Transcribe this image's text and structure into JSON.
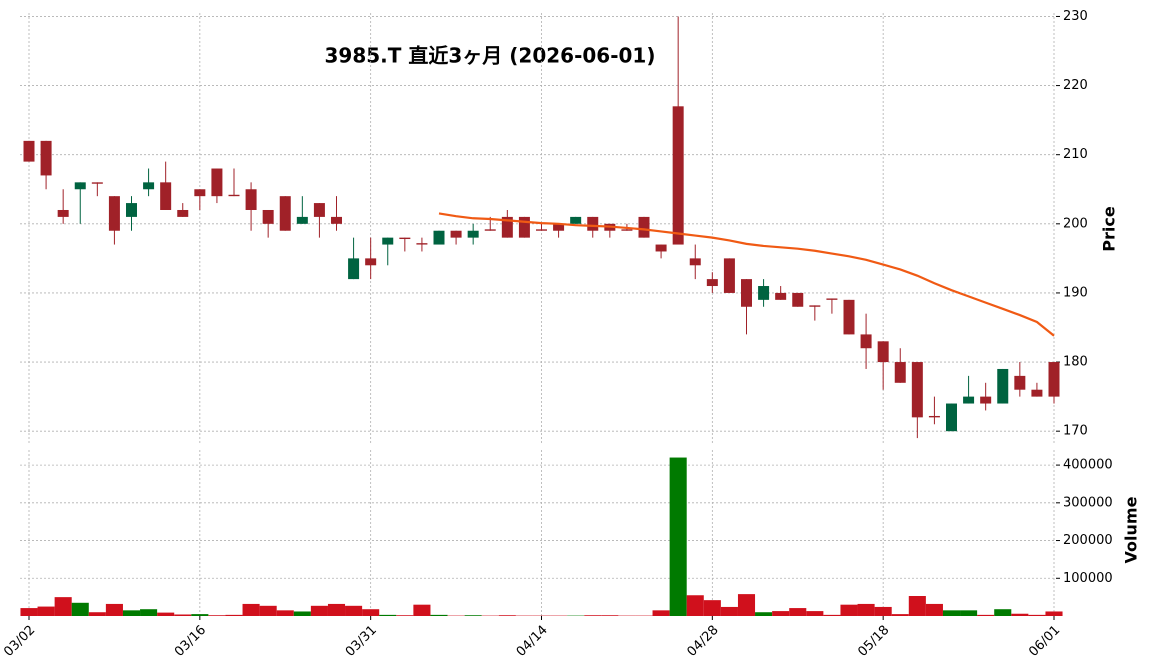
{
  "chart_data": {
    "type": "candlestick",
    "title": "3985.T  直近3ヶ月  (2026-06-01)",
    "categories": [
      "03/02",
      null,
      null,
      null,
      null,
      null,
      null,
      null,
      null,
      null,
      "03/16",
      null,
      null,
      null,
      null,
      null,
      null,
      null,
      null,
      null,
      "03/31",
      null,
      null,
      null,
      null,
      null,
      null,
      null,
      null,
      null,
      "04/14",
      null,
      null,
      null,
      null,
      null,
      null,
      null,
      null,
      null,
      "04/28",
      null,
      null,
      null,
      null,
      null,
      null,
      null,
      null,
      null,
      "05/18",
      null,
      null,
      null,
      null,
      null,
      null,
      null,
      null,
      null,
      "06/01"
    ],
    "open": [
      212,
      212,
      202,
      205,
      206,
      204,
      201,
      205,
      206,
      202,
      205,
      208,
      204.2,
      205,
      202,
      204,
      200,
      203,
      201,
      192,
      195,
      197,
      198,
      197.2,
      197,
      199,
      198,
      199.2,
      201,
      201,
      199.2,
      200,
      200,
      201,
      200,
      199.2,
      201,
      197,
      217,
      195,
      192,
      195,
      192,
      189,
      190,
      190,
      188.2,
      189.2,
      189,
      184,
      183,
      180,
      180,
      172.2,
      170,
      174,
      175,
      174,
      178,
      176,
      180
    ],
    "high": [
      212,
      212,
      205,
      206,
      206,
      204,
      204,
      208,
      209,
      203,
      205,
      208,
      208,
      206,
      202,
      204,
      204,
      203,
      204,
      198,
      198,
      198,
      198,
      198,
      199,
      199,
      200,
      201,
      202,
      201,
      200,
      200,
      201,
      201,
      200,
      200,
      201,
      197,
      230,
      197,
      193,
      195,
      192,
      192,
      191,
      190,
      188.2,
      189.2,
      189,
      187,
      183,
      182,
      180,
      175,
      174,
      178,
      177,
      179,
      180,
      177,
      180
    ],
    "low": [
      209,
      205,
      200,
      200,
      204,
      197,
      199,
      204,
      202,
      201,
      202,
      203,
      204,
      199,
      198,
      199,
      200,
      198,
      199,
      192,
      192,
      194,
      196,
      196,
      197,
      197,
      197,
      199,
      198,
      198,
      199,
      198,
      200,
      198,
      198,
      199,
      198,
      195,
      197,
      192,
      190,
      190,
      184,
      188,
      189,
      188,
      186,
      187,
      184,
      179,
      176,
      177,
      169,
      171,
      170,
      174,
      173,
      174,
      175,
      175,
      174
    ],
    "close": [
      209,
      207,
      201,
      206,
      205.8,
      199,
      203,
      206,
      202,
      201,
      204,
      204,
      204,
      202,
      200,
      199,
      201,
      201,
      200,
      195,
      194,
      198,
      197.8,
      197,
      199,
      198,
      199,
      199,
      198,
      198,
      199,
      199,
      201,
      199,
      199,
      199,
      198,
      196,
      197,
      194,
      191,
      190,
      188,
      191,
      189,
      188,
      188,
      189,
      184,
      182,
      180,
      177,
      172,
      172,
      174,
      175,
      174,
      179,
      176,
      175,
      175
    ],
    "up_color": "#006340",
    "down_color": "#a02128",
    "ma_values": [
      null,
      null,
      null,
      null,
      null,
      null,
      null,
      null,
      null,
      null,
      null,
      null,
      null,
      null,
      null,
      null,
      null,
      null,
      null,
      null,
      null,
      null,
      null,
      null,
      201.5,
      201.1,
      200.8,
      200.7,
      200.5,
      200.3,
      200.1,
      200.0,
      199.8,
      199.7,
      199.6,
      199.4,
      199.2,
      198.9,
      198.6,
      198.3,
      198.0,
      197.6,
      197.1,
      196.8,
      196.6,
      196.4,
      196.1,
      195.7,
      195.3,
      194.8,
      194.1,
      193.4,
      192.5,
      191.4,
      190.4,
      189.5,
      188.6,
      187.7,
      186.8,
      185.8,
      183.8
    ],
    "ma_color": "#f05a14",
    "ylabel": "Price",
    "ylim": [
      168,
      230.5
    ],
    "yticks": [
      170,
      180,
      190,
      200,
      210,
      220,
      230
    ],
    "volume": [
      21000,
      25000,
      50000,
      35000,
      10000,
      32000,
      15000,
      18000,
      9000,
      4000,
      5000,
      2000,
      3000,
      32000,
      27000,
      15000,
      12000,
      27000,
      32000,
      27000,
      18000,
      3000,
      2000,
      30000,
      3000,
      1000,
      2000,
      1000,
      2000,
      1000,
      1000,
      1000,
      1000,
      2000,
      2000,
      1000,
      1000,
      15000,
      420000,
      55000,
      42000,
      24000,
      58000,
      10000,
      13000,
      21000,
      13000,
      3000,
      30000,
      32000,
      24000,
      5000,
      53000,
      32000,
      15000,
      15000,
      3000,
      18000,
      6000,
      3000,
      12000
    ],
    "volume_colors": [
      "#d0101c",
      "#d0101c",
      "#d0101c",
      "#007a00",
      "#d0101c",
      "#d0101c",
      "#007a00",
      "#007a00",
      "#d0101c",
      "#d0101c",
      "#007a00",
      "#d0101c",
      "#d0101c",
      "#d0101c",
      "#d0101c",
      "#d0101c",
      "#007a00",
      "#d0101c",
      "#d0101c",
      "#d0101c",
      "#d0101c",
      "#007a00",
      "#d0101c",
      "#d0101c",
      "#007a00",
      "#d0101c",
      "#007a00",
      "#d0101c",
      "#d0101c",
      "#d0101c",
      "#d0101c",
      "#d0101c",
      "#007a00",
      "#d0101c",
      "#d0101c",
      "#d0101c",
      "#d0101c",
      "#d0101c",
      "#007a00",
      "#d0101c",
      "#d0101c",
      "#d0101c",
      "#d0101c",
      "#007a00",
      "#d0101c",
      "#d0101c",
      "#d0101c",
      "#d0101c",
      "#d0101c",
      "#d0101c",
      "#d0101c",
      "#d0101c",
      "#d0101c",
      "#d0101c",
      "#007a00",
      "#007a00",
      "#d0101c",
      "#007a00",
      "#d0101c",
      "#d0101c",
      "#d0101c"
    ],
    "y2label": "Volume",
    "y2lim": [
      0,
      440000
    ],
    "y2ticks": [
      100000,
      200000,
      300000,
      400000
    ],
    "grid": true
  }
}
